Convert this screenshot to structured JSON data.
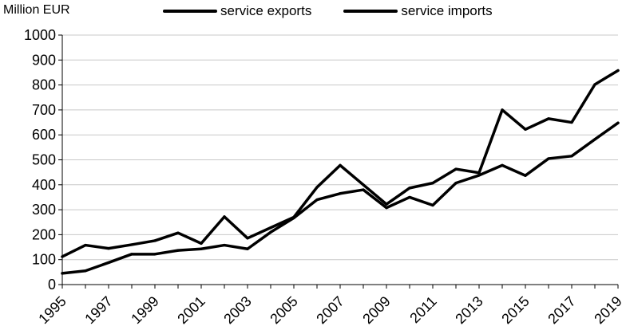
{
  "chart_data": {
    "type": "line",
    "ylabel": "Million EUR",
    "ylim": [
      0,
      1000
    ],
    "yticks": [
      0,
      100,
      200,
      300,
      400,
      500,
      600,
      700,
      800,
      900,
      1000
    ],
    "x": [
      1995,
      1996,
      1997,
      1998,
      1999,
      2000,
      2001,
      2002,
      2003,
      2004,
      2005,
      2006,
      2007,
      2008,
      2009,
      2010,
      2011,
      2012,
      2013,
      2014,
      2015,
      2016,
      2017,
      2018,
      2019
    ],
    "xticks": [
      "1995",
      "1997",
      "1999",
      "2001",
      "2003",
      "2005",
      "2007",
      "2009",
      "2011",
      "2013",
      "2015",
      "2017",
      "2019"
    ],
    "series": [
      {
        "name": "service exports",
        "values": [
          45,
          55,
          88,
          122,
          122,
          137,
          143,
          158,
          143,
          210,
          267,
          340,
          365,
          380,
          308,
          350,
          318,
          407,
          438,
          478,
          437,
          505,
          515,
          582,
          648
        ]
      },
      {
        "name": "service imports",
        "values": [
          112,
          158,
          145,
          160,
          176,
          207,
          165,
          272,
          186,
          228,
          270,
          390,
          478,
          400,
          322,
          387,
          407,
          463,
          448,
          700,
          622,
          665,
          650,
          802,
          858
        ]
      }
    ],
    "grid": true,
    "legend_position": "top",
    "line_color": "#000000"
  }
}
